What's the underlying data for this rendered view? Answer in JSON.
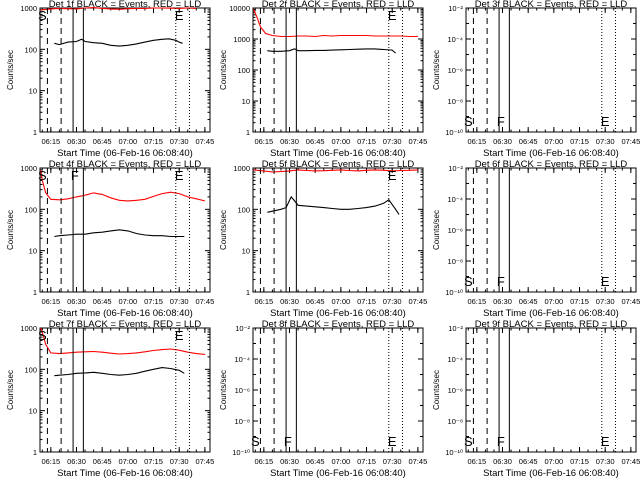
{
  "chart_data": [
    {
      "type": "line",
      "title": "Det 1f BLACK = Events, RED = LLD",
      "xlabel": "Start Time (06-Feb-16 06:08:40)",
      "ylabel": "Counts/sec",
      "y_scale": "log",
      "ylim": [
        1,
        1000
      ],
      "y_tick_labels": [
        "1",
        "10",
        "100",
        "1000"
      ],
      "xlim": [
        "06:08:40",
        "07:48:00"
      ],
      "x_tick_labels": [
        "06:15",
        "06:30",
        "06:45",
        "07:00",
        "07:15",
        "07:30",
        "07:45"
      ],
      "vlines": {
        "dashed": [
          "06:13",
          "06:21"
        ],
        "solid": [
          "06:28",
          "06:34"
        ],
        "dotted": [
          "07:28",
          "07:36"
        ]
      },
      "markers": [
        {
          "label": "S",
          "x": "06:10"
        },
        {
          "label": "E",
          "x": "07:30"
        }
      ],
      "series": [
        {
          "color": "#ff0000",
          "x": [
            "06:09",
            "06:15",
            "06:20",
            "06:25",
            "06:30",
            "06:35",
            "06:40",
            "06:45",
            "06:50",
            "06:55",
            "07:00",
            "07:05",
            "07:10",
            "07:15",
            "07:20",
            "07:25",
            "07:30",
            "07:35",
            "07:40"
          ],
          "values": [
            900,
            950,
            980,
            960,
            950,
            1000,
            1020,
            980,
            950,
            930,
            960,
            980,
            970,
            1000,
            1000,
            990,
            980,
            1000,
            980
          ]
        },
        {
          "color": "#000000",
          "x": [
            "06:17",
            "06:20",
            "06:25",
            "06:30",
            "06:33",
            "06:35",
            "06:40",
            "06:45",
            "06:50",
            "06:55",
            "07:00",
            "07:05",
            "07:10",
            "07:15",
            "07:20",
            "07:24",
            "07:28",
            "07:30",
            "07:32"
          ],
          "values": [
            140,
            130,
            150,
            155,
            175,
            155,
            145,
            140,
            125,
            120,
            125,
            135,
            150,
            165,
            175,
            180,
            165,
            150,
            140
          ]
        }
      ]
    },
    {
      "type": "line",
      "title": "Det 2f BLACK = Events, RED = LLD",
      "xlabel": "Start Time (06-Feb-16 06:08:40)",
      "ylabel": "Counts/sec",
      "y_scale": "log",
      "ylim": [
        1,
        10000
      ],
      "y_tick_labels": [
        "1",
        "10",
        "100",
        "1000",
        "10000"
      ],
      "xlim": [
        "06:08:40",
        "07:48:00"
      ],
      "x_tick_labels": [
        "06:15",
        "06:30",
        "06:45",
        "07:00",
        "07:15",
        "07:30",
        "07:45"
      ],
      "vlines": {
        "dashed": [
          "06:13",
          "06:21"
        ],
        "solid": [
          "06:28",
          "06:34"
        ],
        "dotted": [
          "07:28",
          "07:36"
        ]
      },
      "markers": [
        {
          "label": "E",
          "x": "07:30"
        }
      ],
      "series": [
        {
          "color": "#ff0000",
          "x": [
            "06:09",
            "06:11",
            "06:13",
            "06:16",
            "06:20",
            "06:25",
            "06:30",
            "06:35",
            "06:40",
            "06:45",
            "06:50",
            "06:55",
            "07:00",
            "07:05",
            "07:10",
            "07:15",
            "07:20",
            "07:25",
            "07:30",
            "07:35",
            "07:40",
            "07:45"
          ],
          "values": [
            9000,
            5000,
            2500,
            1500,
            1300,
            1200,
            1200,
            1250,
            1250,
            1200,
            1300,
            1250,
            1300,
            1300,
            1300,
            1300,
            1250,
            1250,
            1250,
            1250,
            1200,
            1200
          ]
        },
        {
          "color": "#000000",
          "x": [
            "06:17",
            "06:20",
            "06:25",
            "06:30",
            "06:33",
            "06:35",
            "06:40",
            "06:45",
            "06:50",
            "06:55",
            "07:00",
            "07:05",
            "07:10",
            "07:15",
            "07:20",
            "07:25",
            "07:30",
            "07:32"
          ],
          "values": [
            420,
            400,
            400,
            420,
            480,
            420,
            420,
            430,
            430,
            440,
            450,
            460,
            470,
            480,
            480,
            460,
            440,
            350
          ]
        }
      ]
    },
    {
      "type": "line",
      "title": "Det 3f BLACK = Events, RED = LLD",
      "xlabel": "Start Time (06-Feb-16 06:08:40)",
      "ylabel": "Counts/sec",
      "y_scale": "log",
      "ylim": [
        1e-10,
        0.01
      ],
      "y_tick_labels": [
        "10⁻¹⁰",
        "10⁻⁸",
        "10⁻⁶",
        "10⁻⁴",
        "10⁻²"
      ],
      "xlim": [
        "06:08:40",
        "07:48:00"
      ],
      "x_tick_labels": [
        "06:15",
        "06:30",
        "06:45",
        "07:00",
        "07:15",
        "07:30",
        "07:45"
      ],
      "vlines": {
        "dashed": [
          "06:13",
          "06:21"
        ],
        "solid": [
          "06:28",
          "06:34"
        ],
        "dotted": [
          "07:28",
          "07:36"
        ]
      },
      "markers": [
        {
          "label": "S",
          "x": "06:10"
        },
        {
          "label": "F",
          "x": "06:29"
        },
        {
          "label": "E",
          "x": "07:30"
        }
      ],
      "series": []
    },
    {
      "type": "line",
      "title": "Det 4f BLACK = Events, RED = LLD",
      "xlabel": "Start Time (06-Feb-16 06:08:40)",
      "ylabel": "Counts/sec",
      "y_scale": "log",
      "ylim": [
        1,
        1000
      ],
      "y_tick_labels": [
        "1",
        "10",
        "100",
        "1000"
      ],
      "xlim": [
        "06:08:40",
        "07:48:00"
      ],
      "x_tick_labels": [
        "06:15",
        "06:30",
        "06:45",
        "07:00",
        "07:15",
        "07:30",
        "07:45"
      ],
      "vlines": {
        "dashed": [
          "06:13",
          "06:21"
        ],
        "solid": [
          "06:28",
          "06:34"
        ],
        "dotted": [
          "07:28",
          "07:36"
        ]
      },
      "markers": [
        {
          "label": "S",
          "x": "06:10"
        },
        {
          "label": "F",
          "x": "06:29"
        },
        {
          "label": "E",
          "x": "07:30"
        }
      ],
      "series": [
        {
          "color": "#ff0000",
          "x": [
            "06:09",
            "06:10",
            "06:12",
            "06:15",
            "06:20",
            "06:25",
            "06:30",
            "06:35",
            "06:40",
            "06:45",
            "06:50",
            "06:55",
            "07:00",
            "07:05",
            "07:10",
            "07:15",
            "07:20",
            "07:25",
            "07:30",
            "07:35",
            "07:40",
            "07:45"
          ],
          "values": [
            900,
            500,
            250,
            175,
            170,
            180,
            200,
            220,
            250,
            230,
            190,
            165,
            160,
            165,
            175,
            205,
            240,
            260,
            240,
            200,
            180,
            160
          ]
        },
        {
          "color": "#000000",
          "x": [
            "06:17",
            "06:20",
            "06:25",
            "06:30",
            "06:35",
            "06:40",
            "06:45",
            "06:50",
            "06:55",
            "07:00",
            "07:05",
            "07:10",
            "07:15",
            "07:20",
            "07:25",
            "07:30",
            "07:33"
          ],
          "values": [
            22,
            23,
            24,
            25,
            25,
            27,
            28,
            30,
            32,
            30,
            26,
            24,
            23,
            23,
            22,
            22,
            22
          ]
        }
      ]
    },
    {
      "type": "line",
      "title": "Det 5f BLACK = Events, RED = LLD",
      "xlabel": "Start Time (06-Feb-16 06:08:40)",
      "ylabel": "Counts/sec",
      "y_scale": "log",
      "ylim": [
        1,
        1000
      ],
      "y_tick_labels": [
        "1",
        "10",
        "100",
        "1000"
      ],
      "xlim": [
        "06:08:40",
        "07:48:00"
      ],
      "x_tick_labels": [
        "06:15",
        "06:30",
        "06:45",
        "07:00",
        "07:15",
        "07:30",
        "07:45"
      ],
      "vlines": {
        "dashed": [
          "06:13",
          "06:21"
        ],
        "solid": [
          "06:28",
          "06:34"
        ],
        "dotted": [
          "07:28",
          "07:36"
        ]
      },
      "markers": [
        {
          "label": "E",
          "x": "07:30"
        }
      ],
      "series": [
        {
          "color": "#ff0000",
          "x": [
            "06:09",
            "06:15",
            "06:20",
            "06:25",
            "06:30",
            "06:35",
            "06:40",
            "06:45",
            "06:50",
            "06:55",
            "07:00",
            "07:05",
            "07:10",
            "07:15",
            "07:20",
            "07:25",
            "07:30",
            "07:35",
            "07:40",
            "07:45"
          ],
          "values": [
            900,
            850,
            800,
            820,
            850,
            900,
            870,
            850,
            860,
            880,
            900,
            870,
            850,
            880,
            900,
            880,
            850,
            870,
            880,
            900
          ]
        },
        {
          "color": "#000000",
          "x": [
            "06:17",
            "06:20",
            "06:25",
            "06:28",
            "06:31",
            "06:33",
            "06:35",
            "06:40",
            "06:45",
            "06:50",
            "06:55",
            "07:00",
            "07:05",
            "07:10",
            "07:15",
            "07:20",
            "07:25",
            "07:28",
            "07:30",
            "07:32",
            "07:34"
          ],
          "values": [
            85,
            90,
            100,
            110,
            200,
            160,
            125,
            120,
            115,
            110,
            105,
            100,
            100,
            105,
            110,
            120,
            140,
            170,
            130,
            100,
            75
          ]
        }
      ]
    },
    {
      "type": "line",
      "title": "Det 6f BLACK = Events, RED = LLD",
      "xlabel": "Start Time (06-Feb-16 06:08:40)",
      "ylabel": "Counts/sec",
      "y_scale": "log",
      "ylim": [
        1e-10,
        0.01
      ],
      "y_tick_labels": [
        "10⁻¹⁰",
        "10⁻⁸",
        "10⁻⁶",
        "10⁻⁴",
        "10⁻²"
      ],
      "xlim": [
        "06:08:40",
        "07:48:00"
      ],
      "x_tick_labels": [
        "06:15",
        "06:30",
        "06:45",
        "07:00",
        "07:15",
        "07:30",
        "07:45"
      ],
      "vlines": {
        "dashed": [
          "06:13",
          "06:21"
        ],
        "solid": [
          "06:28",
          "06:34"
        ],
        "dotted": [
          "07:28",
          "07:36"
        ]
      },
      "markers": [
        {
          "label": "S",
          "x": "06:10"
        },
        {
          "label": "F",
          "x": "06:29"
        },
        {
          "label": "E",
          "x": "07:30"
        }
      ],
      "series": []
    },
    {
      "type": "line",
      "title": "Det 7f BLACK = Events, RED = LLD",
      "xlabel": "Start Time (06-Feb-16 06:08:40)",
      "ylabel": "Counts/sec",
      "y_scale": "log",
      "ylim": [
        1,
        1000
      ],
      "y_tick_labels": [
        "1",
        "10",
        "100",
        "1000"
      ],
      "xlim": [
        "06:08:40",
        "07:48:00"
      ],
      "x_tick_labels": [
        "06:15",
        "06:30",
        "06:45",
        "07:00",
        "07:15",
        "07:30",
        "07:45"
      ],
      "vlines": {
        "dashed": [
          "06:13",
          "06:21"
        ],
        "solid": [
          "06:28",
          "06:34"
        ],
        "dotted": [
          "07:28",
          "07:36"
        ]
      },
      "markers": [
        {
          "label": "S",
          "x": "06:10"
        },
        {
          "label": "E",
          "x": "07:30"
        }
      ],
      "series": [
        {
          "color": "#ff0000",
          "x": [
            "06:09",
            "06:10",
            "06:12",
            "06:15",
            "06:20",
            "06:25",
            "06:30",
            "06:35",
            "06:40",
            "06:45",
            "06:50",
            "06:55",
            "07:00",
            "07:05",
            "07:10",
            "07:15",
            "07:20",
            "07:25",
            "07:30",
            "07:35",
            "07:40",
            "07:45"
          ],
          "values": [
            1000,
            800,
            400,
            250,
            240,
            250,
            260,
            265,
            270,
            260,
            245,
            235,
            240,
            250,
            265,
            285,
            300,
            310,
            290,
            260,
            240,
            230
          ]
        },
        {
          "color": "#000000",
          "x": [
            "06:17",
            "06:20",
            "06:25",
            "06:30",
            "06:35",
            "06:40",
            "06:45",
            "06:50",
            "06:55",
            "07:00",
            "07:05",
            "07:10",
            "07:15",
            "07:20",
            "07:25",
            "07:30",
            "07:33"
          ],
          "values": [
            70,
            72,
            75,
            80,
            82,
            85,
            80,
            75,
            72,
            75,
            80,
            90,
            100,
            110,
            105,
            95,
            80
          ]
        }
      ]
    },
    {
      "type": "line",
      "title": "Det 8f BLACK = Events, RED = LLD",
      "xlabel": "Start Time (06-Feb-16 06:08:40)",
      "ylabel": "Counts/sec",
      "y_scale": "log",
      "ylim": [
        1e-10,
        0.01
      ],
      "y_tick_labels": [
        "10⁻¹⁰",
        "10⁻⁸",
        "10⁻⁶",
        "10⁻⁴",
        "10⁻²"
      ],
      "xlim": [
        "06:08:40",
        "07:48:00"
      ],
      "x_tick_labels": [
        "06:15",
        "06:30",
        "06:45",
        "07:00",
        "07:15",
        "07:30",
        "07:45"
      ],
      "vlines": {
        "dashed": [
          "06:13",
          "06:21"
        ],
        "solid": [
          "06:28",
          "06:34"
        ],
        "dotted": [
          "07:28",
          "07:36"
        ]
      },
      "markers": [
        {
          "label": "S",
          "x": "06:10"
        },
        {
          "label": "F",
          "x": "06:29"
        },
        {
          "label": "E",
          "x": "07:30"
        }
      ],
      "series": []
    },
    {
      "type": "line",
      "title": "Det 9f BLACK = Events, RED = LLD",
      "xlabel": "Start Time (06-Feb-16 06:08:40)",
      "ylabel": "Counts/sec",
      "y_scale": "log",
      "ylim": [
        1e-10,
        0.01
      ],
      "y_tick_labels": [
        "10⁻¹⁰",
        "10⁻⁸",
        "10⁻⁶",
        "10⁻⁴",
        "10⁻²"
      ],
      "xlim": [
        "06:08:40",
        "07:48:00"
      ],
      "x_tick_labels": [
        "06:15",
        "06:30",
        "06:45",
        "07:00",
        "07:15",
        "07:30",
        "07:45"
      ],
      "vlines": {
        "dashed": [
          "06:13",
          "06:21"
        ],
        "solid": [
          "06:28",
          "06:34"
        ],
        "dotted": [
          "07:28",
          "07:36"
        ]
      },
      "markers": [
        {
          "label": "S",
          "x": "06:10"
        },
        {
          "label": "F",
          "x": "06:29"
        },
        {
          "label": "E",
          "x": "07:30"
        }
      ],
      "series": []
    }
  ]
}
